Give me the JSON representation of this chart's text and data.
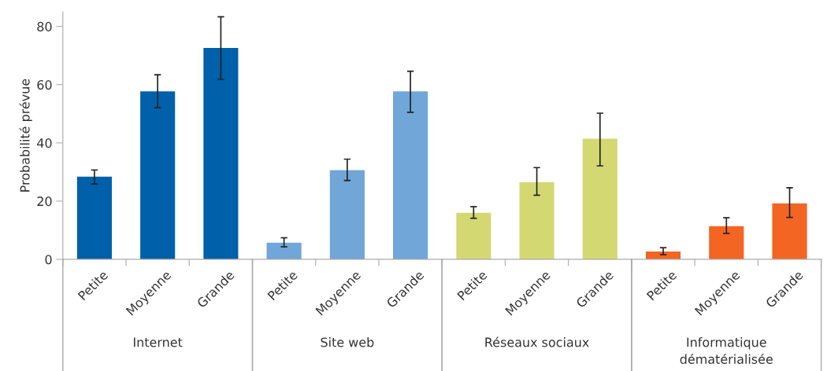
{
  "chart_data": {
    "type": "bar",
    "ylabel": "Probabilité prévue",
    "categories": [
      "Petite",
      "Moyenne",
      "Grande",
      "Petite",
      "Moyenne",
      "Grande",
      "Petite",
      "Moyenne",
      "Grande",
      "Petite",
      "Moyenne",
      "Grande"
    ],
    "values": [
      28.4,
      57.7,
      72.6,
      5.7,
      30.6,
      57.7,
      16.0,
      26.5,
      41.4,
      2.7,
      11.4,
      19.2
    ],
    "errors": [
      [
        25.9,
        30.7
      ],
      [
        52.1,
        63.4
      ],
      [
        61.8,
        83.3
      ],
      [
        4.3,
        7.4
      ],
      [
        27.1,
        34.4
      ],
      [
        50.5,
        64.6
      ],
      [
        14.1,
        18.1
      ],
      [
        22.0,
        31.5
      ],
      [
        32.1,
        50.2
      ],
      [
        1.6,
        4.0
      ],
      [
        8.9,
        14.3
      ],
      [
        14.4,
        24.6
      ]
    ],
    "colors": [
      "#0060aa",
      "#0060aa",
      "#0060aa",
      "#70a6d8",
      "#70a6d8",
      "#70a6d8",
      "#d4d872",
      "#d4d872",
      "#d4d872",
      "#f26522",
      "#f26522",
      "#f26522"
    ],
    "annotations": [
      "Internet",
      "Site web",
      "Réseaux sociaux",
      "Informatique dématérialisée"
    ],
    "ylim": [
      0,
      85
    ],
    "yticks": [
      0,
      20,
      40,
      60,
      80
    ],
    "grid": false,
    "legend": false
  }
}
